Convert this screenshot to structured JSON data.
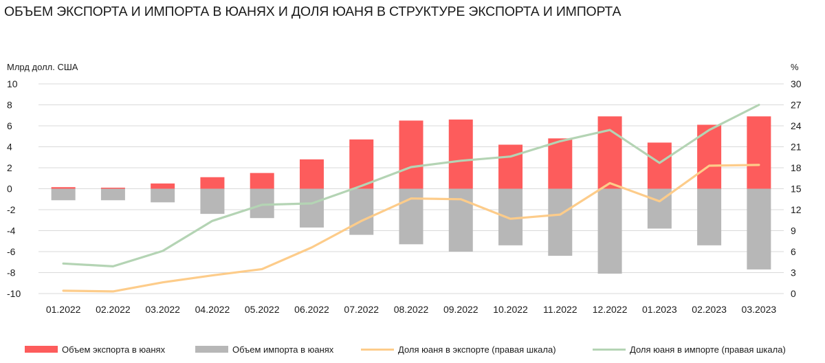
{
  "title": "ОБЪЕМ ЭКСПОРТА И ИМПОРТА В ЮАНЯХ И ДОЛЯ ЮАНЯ В СТРУКТУРЕ ЭКСПОРТА И ИМПОРТА",
  "colors": {
    "export": "#fd5c5c",
    "import": "#b7b7b7",
    "export_share": "#fdcc8a",
    "import_share": "#b4d4b4",
    "grid": "#d9d9d9",
    "text": "#1a1a1a"
  },
  "chart_data": {
    "type": "bar",
    "ylabel": "Млрд долл. США",
    "y2label": "%",
    "ylim": [
      -10,
      10
    ],
    "y2lim": [
      0,
      30
    ],
    "yticks": [
      10,
      8,
      6,
      4,
      2,
      0,
      -2,
      -4,
      -6,
      -8,
      -10
    ],
    "y2ticks": [
      30,
      27,
      24,
      21,
      18,
      15,
      12,
      9,
      6,
      3,
      0
    ],
    "grid": true,
    "legend_position": "bottom",
    "categories": [
      "01.2022",
      "02.2022",
      "03.2022",
      "04.2022",
      "05.2022",
      "06.2022",
      "07.2022",
      "08.2022",
      "09.2022",
      "10.2022",
      "11.2022",
      "12.2022",
      "01.2023",
      "02.2023",
      "03.2023"
    ],
    "series": [
      {
        "name": "Объем экспорта в юанях",
        "kind": "bar",
        "axis": "left",
        "color": "#fd5c5c",
        "values": [
          0.15,
          0.1,
          0.5,
          1.1,
          1.5,
          2.8,
          4.7,
          6.5,
          6.6,
          4.2,
          4.8,
          6.9,
          4.4,
          6.1,
          6.9
        ]
      },
      {
        "name": "Объем импорта в юанях",
        "kind": "bar",
        "axis": "left",
        "color": "#b7b7b7",
        "values": [
          -1.1,
          -1.1,
          -1.3,
          -2.4,
          -2.8,
          -3.7,
          -4.4,
          -5.3,
          -6.0,
          -5.4,
          -6.4,
          -8.1,
          -3.8,
          -5.4,
          -7.7
        ]
      },
      {
        "name": "Доля юаня в экспорте (правая шкала)",
        "kind": "line",
        "axis": "right",
        "color": "#fdcc8a",
        "values": [
          0.4,
          0.3,
          1.6,
          2.6,
          3.5,
          6.6,
          10.4,
          13.6,
          13.5,
          10.7,
          11.3,
          15.8,
          13.2,
          18.3,
          18.4
        ]
      },
      {
        "name": "Доля юаня в импорте (правая шкала)",
        "kind": "line",
        "axis": "right",
        "color": "#b4d4b4",
        "values": [
          4.3,
          3.9,
          6.1,
          10.4,
          12.7,
          12.9,
          15.4,
          18.1,
          19.0,
          19.6,
          21.8,
          23.4,
          18.7,
          23.4,
          27.0
        ]
      }
    ]
  },
  "legend": [
    {
      "label": "Объем экспорта в юанях",
      "kind": "bar",
      "color": "#fd5c5c"
    },
    {
      "label": "Объем импорта в юанях",
      "kind": "bar",
      "color": "#b7b7b7"
    },
    {
      "label": "Доля юаня в экспорте (правая шкала)",
      "kind": "line",
      "color": "#fdcc8a"
    },
    {
      "label": "Доля юаня в импорте (правая шкала)",
      "kind": "line",
      "color": "#b4d4b4"
    }
  ]
}
